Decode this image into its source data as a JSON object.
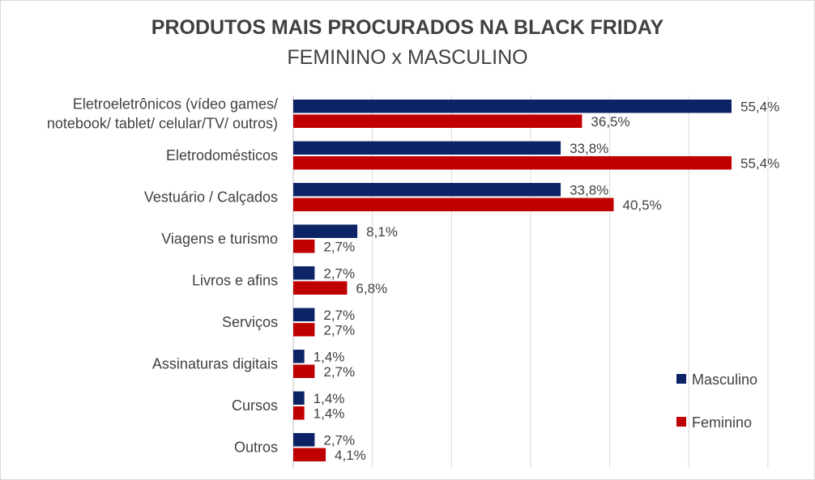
{
  "chart_data": {
    "type": "bar",
    "orientation": "horizontal",
    "title": "PRODUTOS MAIS PROCURADOS NA BLACK FRIDAY",
    "subtitle": "FEMININO x MASCULINO",
    "categories": [
      [
        "Eletroeletrônicos (vídeo games/",
        "notebook/ tablet/ celular/TV/ outros)"
      ],
      [
        "Eletrodomésticos"
      ],
      [
        "Vestuário / Calçados"
      ],
      [
        "Viagens e turismo"
      ],
      [
        "Livros e afins"
      ],
      [
        "Serviços"
      ],
      [
        "Assinaturas digitais"
      ],
      [
        "Cursos"
      ],
      [
        "Outros"
      ]
    ],
    "series": [
      {
        "name": "Masculino",
        "color": "#0c2466",
        "values": [
          55.4,
          33.8,
          33.8,
          8.1,
          2.7,
          2.7,
          1.4,
          1.4,
          2.7
        ],
        "labels": [
          "55,4%",
          "33,8%",
          "33,8%",
          "8,1%",
          "2,7%",
          "2,7%",
          "1,4%",
          "1,4%",
          "2,7%"
        ]
      },
      {
        "name": "Feminino",
        "color": "#c00000",
        "values": [
          36.5,
          55.4,
          40.5,
          2.7,
          6.8,
          2.7,
          2.7,
          1.4,
          4.1
        ],
        "labels": [
          "36,5%",
          "55,4%",
          "40,5%",
          "2,7%",
          "6,8%",
          "2,7%",
          "2,7%",
          "1,4%",
          "4,1%"
        ]
      }
    ],
    "xlim": [
      0,
      60
    ],
    "grid": true,
    "legend_position": "bottom-right"
  }
}
